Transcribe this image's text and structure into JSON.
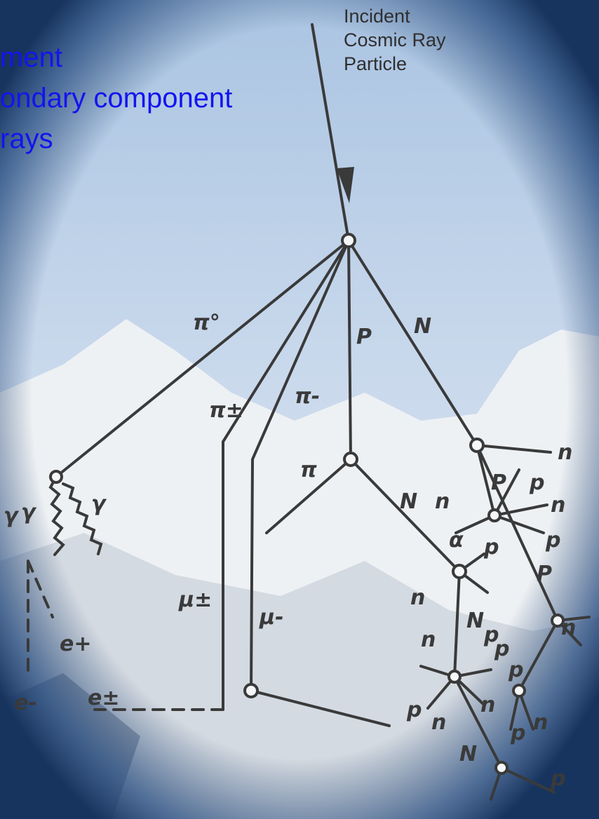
{
  "slide_text": {
    "lines": [
      "ment",
      "ondary component",
      "rays"
    ]
  },
  "diagram": {
    "incident_label": [
      "Incident",
      "Cosmic Ray",
      "Particle"
    ],
    "labels": [
      "π°",
      "P",
      "N",
      "π-",
      "π±",
      "π",
      "N",
      "n",
      "P",
      "p",
      "n",
      "n",
      "α",
      "p",
      "p",
      "P",
      "γ",
      "γ",
      "γ",
      "μ±",
      "μ-",
      "e+",
      "e±",
      "e-",
      "n",
      "N",
      "n",
      "p",
      "n",
      "N",
      "p",
      "n",
      "p",
      "p",
      "n",
      "n",
      "p",
      "p"
    ]
  }
}
